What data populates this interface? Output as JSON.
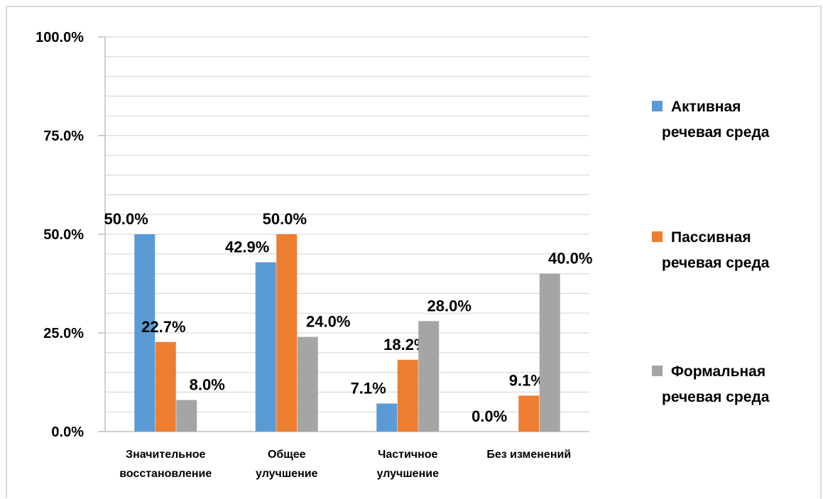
{
  "chart_data": {
    "type": "bar",
    "categories": [
      [
        "Значительное",
        "восстановление"
      ],
      [
        "Общее",
        "улучшение"
      ],
      [
        "Частичное",
        "улучшение"
      ],
      [
        "Без изменений"
      ]
    ],
    "series": [
      {
        "name": "Активная речевая среда",
        "legend_lines": [
          "Активная",
          "речевая среда"
        ],
        "color": "#5b9bd5",
        "values": [
          50.0,
          42.9,
          7.1,
          0.0
        ]
      },
      {
        "name": "Пассивная речевая среда",
        "legend_lines": [
          "Пассивная",
          "речевая среда"
        ],
        "color": "#ed7d31",
        "values": [
          22.7,
          50.0,
          18.2,
          9.1
        ]
      },
      {
        "name": "Формальная речевая среда",
        "legend_lines": [
          "Формальная",
          "речевая среда"
        ],
        "color": "#a5a5a5",
        "values": [
          8.0,
          24.0,
          28.0,
          40.0
        ]
      }
    ],
    "ylim": [
      0,
      100
    ],
    "y_ticks": [
      0,
      25,
      50,
      75,
      100
    ],
    "y_tick_labels": [
      "0.0%",
      "25.0%",
      "50.0%",
      "75.0%",
      "100.0%"
    ],
    "y_minor_step": 5,
    "grid": true,
    "legend_position": "right",
    "title": "",
    "xlabel": "",
    "ylabel": ""
  }
}
